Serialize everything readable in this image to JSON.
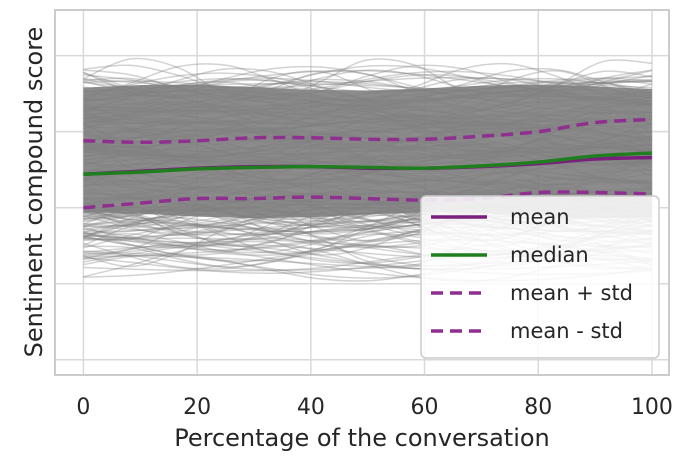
{
  "chart_data": {
    "type": "line",
    "xlabel": "Percentage of the conversation",
    "ylabel": "Sentiment compound score",
    "xlim": [
      -5,
      103
    ],
    "ylim": [
      -1.1,
      1.3
    ],
    "x_ticks": [
      0,
      20,
      40,
      60,
      80,
      100
    ],
    "y_ticks": [
      -1.0,
      -0.5,
      0.0,
      0.5,
      1.0
    ],
    "grid": true,
    "legend_position": "bottom-right",
    "background_band": {
      "color": "#7f7f7f",
      "description_free": true,
      "upper": 0.85,
      "lower": -0.4
    },
    "x": [
      0,
      10,
      20,
      30,
      40,
      50,
      60,
      70,
      80,
      90,
      100
    ],
    "series": [
      {
        "name": "mean",
        "color": "#7b1f7f",
        "dash": "solid",
        "values": [
          0.22,
          0.24,
          0.26,
          0.27,
          0.27,
          0.26,
          0.26,
          0.27,
          0.29,
          0.32,
          0.33
        ]
      },
      {
        "name": "median",
        "color": "#1f7f1f",
        "dash": "solid",
        "values": [
          0.22,
          0.235,
          0.255,
          0.265,
          0.27,
          0.265,
          0.26,
          0.275,
          0.3,
          0.34,
          0.36
        ]
      },
      {
        "name": "mean + std",
        "color": "#8f2f8f",
        "dash": "dashed",
        "values": [
          0.44,
          0.43,
          0.44,
          0.46,
          0.46,
          0.45,
          0.45,
          0.47,
          0.5,
          0.56,
          0.58
        ]
      },
      {
        "name": "mean - std",
        "color": "#8f2f8f",
        "dash": "dashed",
        "values": [
          0.0,
          0.03,
          0.06,
          0.06,
          0.07,
          0.06,
          0.05,
          0.06,
          0.1,
          0.1,
          0.09
        ]
      }
    ]
  }
}
